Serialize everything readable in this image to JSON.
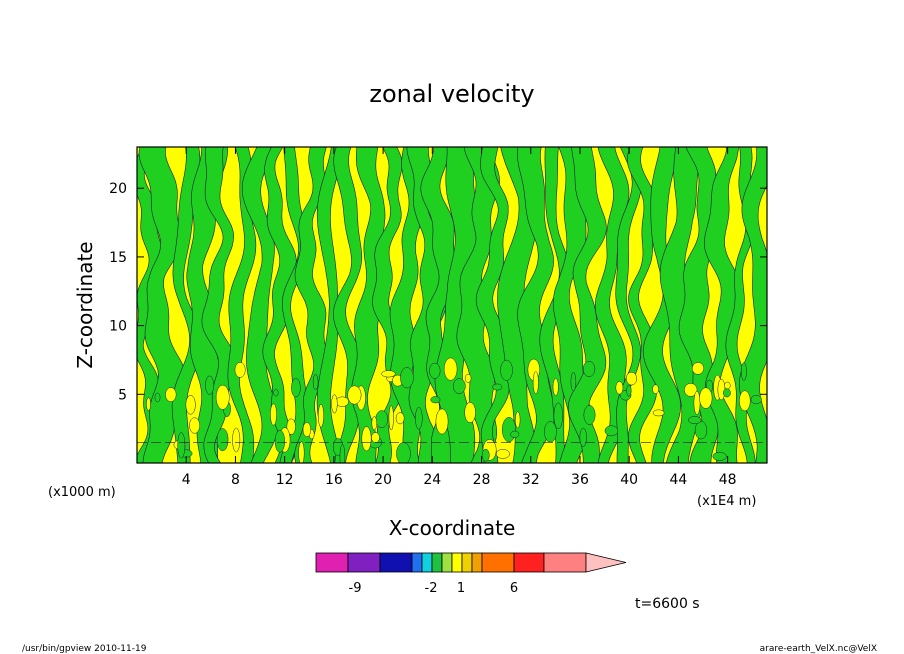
{
  "chart_data": {
    "type": "heatmap",
    "title": "zonal velocity",
    "xlabel": "X-coordinate",
    "ylabel": "Z-coordinate",
    "x_unit_label": "(x1E4 m)",
    "y_unit_label": "(x1000 m)",
    "x_ticks": [
      "4",
      "8",
      "12",
      "16",
      "20",
      "24",
      "28",
      "32",
      "36",
      "40",
      "44",
      "48"
    ],
    "y_ticks": [
      "5",
      "10",
      "15",
      "20"
    ],
    "xlim": [
      0,
      51.2
    ],
    "ylim": [
      0,
      23
    ],
    "levels_description": "filled contours of zonal velocity",
    "colorbar": {
      "tick_labels": [
        "-9",
        "-2",
        "1",
        "6"
      ],
      "bins": [
        {
          "color": "#e020b0",
          "value": -12
        },
        {
          "color": "#8020c0",
          "value": -9
        },
        {
          "color": "#1010b0",
          "value": -6
        },
        {
          "color": "#2070f0",
          "value": -3
        },
        {
          "color": "#10d0e0",
          "value": -2
        },
        {
          "color": "#20c040",
          "value": -1
        },
        {
          "color": "#a0e040",
          "value": 0
        },
        {
          "color": "#ffff00",
          "value": 1
        },
        {
          "color": "#f0d000",
          "value": 2
        },
        {
          "color": "#f0a000",
          "value": 3
        },
        {
          "color": "#ff7000",
          "value": 6
        },
        {
          "color": "#ff2020",
          "value": 9
        },
        {
          "color": "#ff8080",
          "value": 12
        },
        {
          "color": "#ffc0c0",
          "value": 15
        }
      ]
    },
    "dominant_colors": {
      "negative_small": "#20d020",
      "positive_small": "#ffff00",
      "contour": "#1a1a4a"
    }
  },
  "annotations": {
    "time": "t=6600 s",
    "footer_left": "/usr/bin/gpview  2010-11-19",
    "footer_right": "arare-earth_VelX.nc@VelX"
  }
}
